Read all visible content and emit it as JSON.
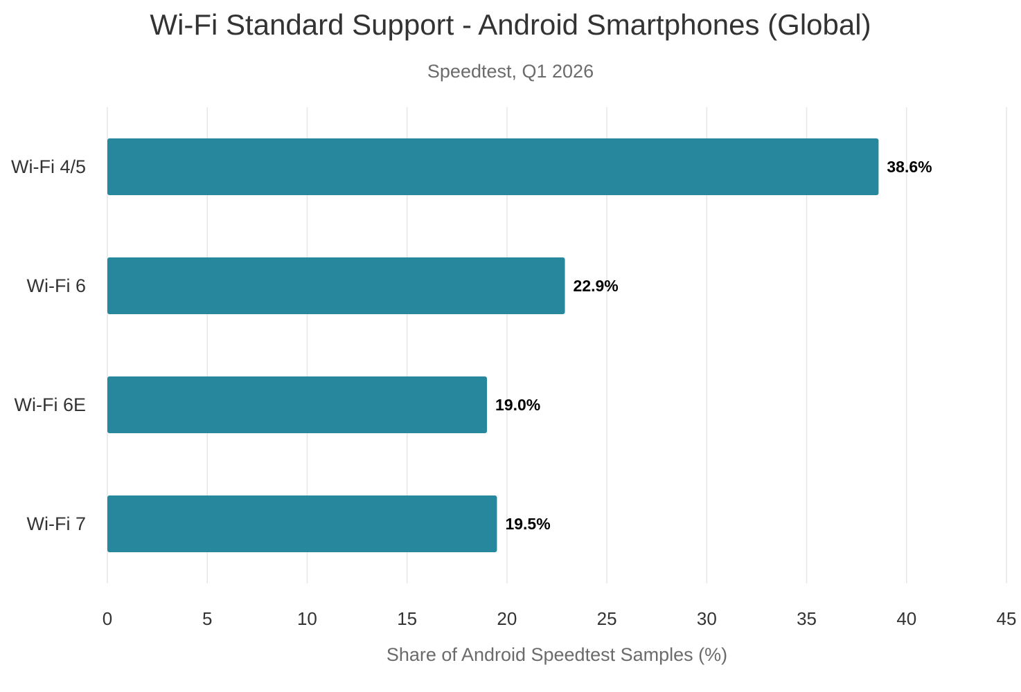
{
  "chart_data": {
    "type": "bar",
    "orientation": "horizontal",
    "title": "Wi-Fi Standard Support - Android Smartphones (Global)",
    "subtitle": "Speedtest, Q1 2026",
    "xlabel": "Share of Android Speedtest Samples (%)",
    "ylabel": "",
    "categories": [
      "Wi-Fi 4/5",
      "Wi-Fi 6",
      "Wi-Fi 6E",
      "Wi-Fi 7"
    ],
    "values": [
      38.6,
      22.9,
      19.0,
      19.5
    ],
    "value_labels": [
      "38.6%",
      "22.9%",
      "19.0%",
      "19.5%"
    ],
    "xlim": [
      0,
      45
    ],
    "xticks": [
      0,
      5,
      10,
      15,
      20,
      25,
      30,
      35,
      40,
      45
    ],
    "grid": "vertical",
    "legend": "none",
    "bar_color": "#27889d",
    "grid_color": "#e6e6e6"
  }
}
